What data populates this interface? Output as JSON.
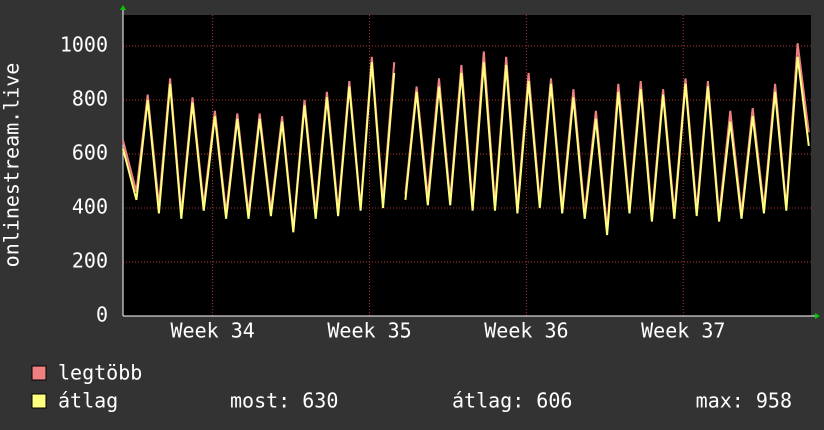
{
  "chart_data": {
    "type": "line",
    "y_label": "onlinestream.live",
    "x": [
      0,
      0.6,
      1.1,
      1.6,
      2.1,
      2.6,
      3.1,
      3.6,
      4.1,
      4.6,
      5.1,
      5.6,
      6.1,
      6.6,
      7.1,
      7.6,
      8.1,
      8.6,
      9.1,
      9.6,
      10.1,
      10.6,
      11.1,
      11.6,
      12.1,
      12.4,
      12.6,
      13.1,
      13.6,
      14.1,
      14.6,
      15.1,
      15.6,
      16.1,
      16.6,
      17.1,
      17.6,
      18.1,
      18.6,
      19.1,
      19.6,
      20.1,
      20.6,
      21.1,
      21.6,
      22.1,
      22.6,
      23.1,
      23.6,
      24.1,
      24.6,
      25.1,
      25.6,
      26.1,
      26.6,
      27.1,
      27.6,
      28.1,
      28.6,
      29.1,
      29.6,
      30.1,
      30.6
    ],
    "series": [
      {
        "name": "legtöbb",
        "color": "#f08080",
        "values": [
          650,
          460,
          820,
          410,
          880,
          380,
          810,
          410,
          760,
          380,
          750,
          380,
          750,
          390,
          740,
          320,
          800,
          380,
          830,
          390,
          870,
          400,
          960,
          420,
          940,
          null,
          450,
          850,
          440,
          880,
          430,
          930,
          410,
          980,
          410,
          960,
          400,
          900,
          420,
          880,
          400,
          840,
          380,
          760,
          320,
          860,
          400,
          870,
          370,
          840,
          380,
          880,
          390,
          870,
          370,
          760,
          380,
          770,
          400,
          860,
          400,
          1010,
          680
        ]
      },
      {
        "name": "átlag",
        "color": "#ffff80",
        "values": [
          620,
          430,
          800,
          380,
          860,
          360,
          790,
          390,
          740,
          360,
          730,
          360,
          730,
          370,
          720,
          310,
          780,
          360,
          810,
          370,
          850,
          390,
          940,
          400,
          900,
          null,
          430,
          830,
          410,
          850,
          410,
          900,
          390,
          940,
          390,
          930,
          380,
          870,
          400,
          860,
          380,
          810,
          360,
          730,
          300,
          830,
          380,
          840,
          350,
          820,
          360,
          860,
          370,
          850,
          350,
          720,
          360,
          740,
          380,
          830,
          390,
          960,
          630
        ]
      }
    ],
    "xlim": [
      0,
      30.7
    ],
    "xticks": [
      {
        "value": 4,
        "label": "Week 34"
      },
      {
        "value": 11,
        "label": "Week 35"
      },
      {
        "value": 18,
        "label": "Week 36"
      },
      {
        "value": 25,
        "label": "Week 37"
      }
    ],
    "ylim": [
      0,
      1115
    ],
    "yticks": [
      0,
      200,
      400,
      600,
      800,
      1000
    ],
    "grid": true,
    "stats": [
      "most: 630",
      "átlag: 606",
      "max: 958"
    ]
  }
}
